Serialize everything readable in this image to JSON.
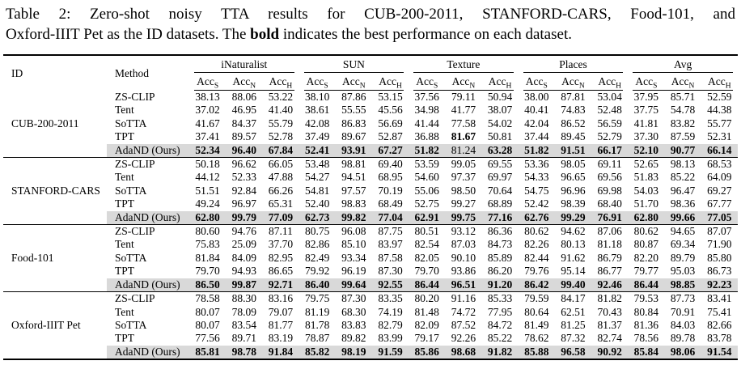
{
  "caption": {
    "line1": "Table 2: Zero-shot noisy TTA results for CUB-200-2011, STANFORD-CARS, Food-101, and",
    "line2_before_bold": "Oxford-IIIT Pet as the ID datasets. The",
    "bold_word": "bold",
    "line2_after_bold": "indicates the best performance on each dataset."
  },
  "table": {
    "highlight_color": "#d9d9d9",
    "header": {
      "id_label": "ID",
      "method_label": "Method",
      "groups": [
        "iNaturalist",
        "SUN",
        "Texture",
        "Places",
        "Avg"
      ],
      "metric_base": "Acc",
      "metric_subscripts": [
        "S",
        "N",
        "H"
      ]
    },
    "blocks": [
      {
        "id": "CUB-200-2011",
        "rows": [
          {
            "method": "ZS-CLIP",
            "highlight": false,
            "bold_indices": [],
            "values": [
              "38.13",
              "88.06",
              "53.22",
              "38.10",
              "87.86",
              "53.15",
              "37.56",
              "79.11",
              "50.94",
              "38.00",
              "87.81",
              "53.04",
              "37.95",
              "85.71",
              "52.59"
            ]
          },
          {
            "method": "Tent",
            "highlight": false,
            "bold_indices": [],
            "values": [
              "37.02",
              "46.95",
              "41.40",
              "38.61",
              "55.55",
              "45.56",
              "34.98",
              "41.77",
              "38.07",
              "40.41",
              "74.83",
              "52.48",
              "37.75",
              "54.78",
              "44.38"
            ]
          },
          {
            "method": "SoTTA",
            "highlight": false,
            "bold_indices": [],
            "values": [
              "41.67",
              "84.37",
              "55.79",
              "42.08",
              "86.83",
              "56.69",
              "41.44",
              "77.58",
              "54.02",
              "42.04",
              "86.52",
              "56.59",
              "41.81",
              "83.82",
              "55.77"
            ]
          },
          {
            "method": "TPT",
            "highlight": false,
            "bold_indices": [
              7
            ],
            "values": [
              "37.41",
              "89.57",
              "52.78",
              "37.49",
              "89.67",
              "52.87",
              "36.88",
              "81.67",
              "50.81",
              "37.44",
              "89.45",
              "52.79",
              "37.30",
              "87.59",
              "52.31"
            ]
          },
          {
            "method": "AdaND (Ours)",
            "highlight": true,
            "bold_indices": [
              0,
              1,
              2,
              3,
              4,
              5,
              6,
              8,
              9,
              10,
              11,
              12,
              13,
              14
            ],
            "values": [
              "52.34",
              "96.40",
              "67.84",
              "52.41",
              "93.91",
              "67.27",
              "51.82",
              "81.24",
              "63.28",
              "51.82",
              "91.51",
              "66.17",
              "52.10",
              "90.77",
              "66.14"
            ]
          }
        ]
      },
      {
        "id": "STANFORD-CARS",
        "rows": [
          {
            "method": "ZS-CLIP",
            "highlight": false,
            "bold_indices": [],
            "values": [
              "50.18",
              "96.62",
              "66.05",
              "53.48",
              "98.81",
              "69.40",
              "53.59",
              "99.05",
              "69.55",
              "53.36",
              "98.05",
              "69.11",
              "52.65",
              "98.13",
              "68.53"
            ]
          },
          {
            "method": "Tent",
            "highlight": false,
            "bold_indices": [],
            "values": [
              "44.12",
              "52.33",
              "47.88",
              "54.27",
              "94.51",
              "68.95",
              "54.60",
              "97.37",
              "69.97",
              "54.33",
              "96.65",
              "69.56",
              "51.83",
              "85.22",
              "64.09"
            ]
          },
          {
            "method": "SoTTA",
            "highlight": false,
            "bold_indices": [],
            "values": [
              "51.51",
              "92.84",
              "66.26",
              "54.81",
              "97.57",
              "70.19",
              "55.06",
              "98.50",
              "70.64",
              "54.75",
              "96.96",
              "69.98",
              "54.03",
              "96.47",
              "69.27"
            ]
          },
          {
            "method": "TPT",
            "highlight": false,
            "bold_indices": [],
            "values": [
              "49.24",
              "96.97",
              "65.31",
              "52.40",
              "98.83",
              "68.49",
              "52.75",
              "99.27",
              "68.89",
              "52.42",
              "98.39",
              "68.40",
              "51.70",
              "98.36",
              "67.77"
            ]
          },
          {
            "method": "AdaND (Ours)",
            "highlight": true,
            "bold_indices": [
              0,
              1,
              2,
              3,
              4,
              5,
              6,
              7,
              8,
              9,
              10,
              11,
              12,
              13,
              14
            ],
            "values": [
              "62.80",
              "99.79",
              "77.09",
              "62.73",
              "99.82",
              "77.04",
              "62.91",
              "99.75",
              "77.16",
              "62.76",
              "99.29",
              "76.91",
              "62.80",
              "99.66",
              "77.05"
            ]
          }
        ]
      },
      {
        "id": "Food-101",
        "rows": [
          {
            "method": "ZS-CLIP",
            "highlight": false,
            "bold_indices": [],
            "values": [
              "80.60",
              "94.76",
              "87.11",
              "80.75",
              "96.08",
              "87.75",
              "80.51",
              "93.12",
              "86.36",
              "80.62",
              "94.62",
              "87.06",
              "80.62",
              "94.65",
              "87.07"
            ]
          },
          {
            "method": "Tent",
            "highlight": false,
            "bold_indices": [],
            "values": [
              "75.83",
              "25.09",
              "37.70",
              "82.86",
              "85.10",
              "83.97",
              "82.54",
              "87.03",
              "84.73",
              "82.26",
              "80.13",
              "81.18",
              "80.87",
              "69.34",
              "71.90"
            ]
          },
          {
            "method": "SoTTA",
            "highlight": false,
            "bold_indices": [],
            "values": [
              "81.84",
              "84.09",
              "82.95",
              "82.49",
              "93.34",
              "87.58",
              "82.05",
              "90.10",
              "85.89",
              "82.44",
              "91.62",
              "86.79",
              "82.20",
              "89.79",
              "85.80"
            ]
          },
          {
            "method": "TPT",
            "highlight": false,
            "bold_indices": [],
            "values": [
              "79.70",
              "94.93",
              "86.65",
              "79.92",
              "96.19",
              "87.30",
              "79.70",
              "93.86",
              "86.20",
              "79.76",
              "95.14",
              "86.77",
              "79.77",
              "95.03",
              "86.73"
            ]
          },
          {
            "method": "AdaND (Ours)",
            "highlight": true,
            "bold_indices": [
              0,
              1,
              2,
              3,
              4,
              5,
              6,
              7,
              8,
              9,
              10,
              11,
              12,
              13,
              14
            ],
            "values": [
              "86.50",
              "99.87",
              "92.71",
              "86.40",
              "99.64",
              "92.55",
              "86.44",
              "96.51",
              "91.20",
              "86.42",
              "99.40",
              "92.46",
              "86.44",
              "98.85",
              "92.23"
            ]
          }
        ]
      },
      {
        "id": "Oxford-IIIT Pet",
        "rows": [
          {
            "method": "ZS-CLIP",
            "highlight": false,
            "bold_indices": [],
            "values": [
              "78.58",
              "88.30",
              "83.16",
              "79.75",
              "87.30",
              "83.35",
              "80.20",
              "91.16",
              "85.33",
              "79.59",
              "84.17",
              "81.82",
              "79.53",
              "87.73",
              "83.41"
            ]
          },
          {
            "method": "Tent",
            "highlight": false,
            "bold_indices": [],
            "values": [
              "80.07",
              "78.09",
              "79.07",
              "81.19",
              "68.30",
              "74.19",
              "81.48",
              "74.72",
              "77.95",
              "80.64",
              "62.51",
              "70.43",
              "80.84",
              "70.91",
              "75.41"
            ]
          },
          {
            "method": "SoTTA",
            "highlight": false,
            "bold_indices": [],
            "values": [
              "80.07",
              "83.54",
              "81.77",
              "81.78",
              "83.83",
              "82.79",
              "82.09",
              "87.52",
              "84.72",
              "81.49",
              "81.25",
              "81.37",
              "81.36",
              "84.03",
              "82.66"
            ]
          },
          {
            "method": "TPT",
            "highlight": false,
            "bold_indices": [],
            "values": [
              "77.56",
              "89.71",
              "83.19",
              "78.87",
              "89.82",
              "83.99",
              "79.17",
              "92.26",
              "85.22",
              "78.62",
              "87.32",
              "82.74",
              "78.56",
              "89.78",
              "83.78"
            ]
          },
          {
            "method": "AdaND (Ours)",
            "highlight": true,
            "bold_indices": [
              0,
              1,
              2,
              3,
              4,
              5,
              6,
              7,
              8,
              9,
              10,
              11,
              12,
              13,
              14
            ],
            "values": [
              "85.81",
              "98.78",
              "91.84",
              "85.82",
              "98.19",
              "91.59",
              "85.86",
              "98.68",
              "91.82",
              "85.88",
              "96.58",
              "90.92",
              "85.84",
              "98.06",
              "91.54"
            ]
          }
        ]
      }
    ]
  }
}
